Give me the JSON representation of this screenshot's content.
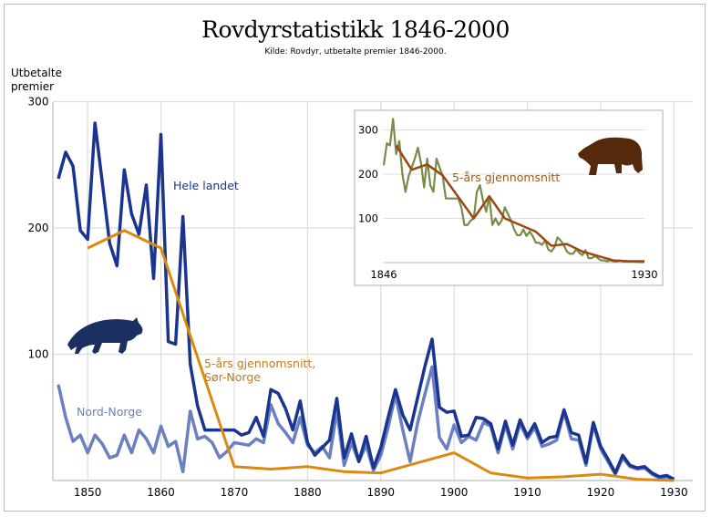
{
  "title": "Rovdyrstatistikk 1846-2000",
  "subtitle": "Kilde: Rovdyr, utbetalte premier 1846-2000.",
  "chart_data": [
    {
      "type": "line",
      "title": "Rovdyrstatistikk 1846-2000",
      "ylabel": "Utbetalte premier",
      "ylabel_lines": [
        "Utbetalte",
        "premier"
      ],
      "xlabel": "",
      "xlim": [
        1845,
        1932
      ],
      "ylim": [
        0,
        300
      ],
      "xticks": [
        1850,
        1860,
        1870,
        1880,
        1890,
        1900,
        1910,
        1920,
        1930
      ],
      "yticks": [
        100,
        200,
        300
      ],
      "grid": true,
      "icon": "wolf-icon",
      "series": [
        {
          "name": "Hele landet",
          "color": "#1a3590",
          "x_start": 1846,
          "values": [
            239,
            260,
            249,
            198,
            191,
            283,
            236,
            188,
            170,
            246,
            211,
            195,
            234,
            160,
            274,
            110,
            108,
            209,
            92,
            59,
            40,
            40,
            40,
            40,
            40,
            36,
            38,
            50,
            35,
            72,
            69,
            57,
            40,
            63,
            30,
            20,
            26,
            32,
            65,
            18,
            37,
            15,
            35,
            10,
            26,
            50,
            72,
            52,
            40,
            65,
            90,
            112,
            58,
            54,
            55,
            35,
            36,
            50,
            49,
            45,
            25,
            47,
            28,
            48,
            35,
            45,
            30,
            34,
            35,
            56,
            38,
            36,
            14,
            46,
            27,
            17,
            6,
            20,
            12,
            10,
            11,
            6,
            3,
            4,
            1
          ]
        },
        {
          "name": "Nord-Norge",
          "color": "#6a80c0",
          "x_start": 1846,
          "values": [
            76,
            50,
            31,
            36,
            22,
            36,
            29,
            18,
            20,
            36,
            22,
            40,
            33,
            22,
            43,
            27,
            31,
            7,
            55,
            33,
            35,
            30,
            18,
            23,
            30,
            29,
            28,
            33,
            30,
            60,
            45,
            38,
            30,
            50,
            28,
            22,
            27,
            18,
            55,
            12,
            30,
            15,
            28,
            8,
            20,
            42,
            68,
            40,
            15,
            45,
            68,
            90,
            34,
            25,
            44,
            30,
            35,
            32,
            46,
            43,
            22,
            44,
            25,
            45,
            33,
            42,
            27,
            29,
            32,
            54,
            33,
            32,
            12,
            44,
            25,
            15,
            5,
            18,
            11,
            9,
            10,
            5,
            2,
            3,
            1
          ]
        },
        {
          "name": "5-års gjennomsnitt, Sør-Norge",
          "label_lines": [
            "5-års gjennomsnitt,",
            "Sør-Norge"
          ],
          "color": "#d98a10",
          "x": [
            1850,
            1855,
            1860,
            1870,
            1875,
            1880,
            1885,
            1890,
            1900,
            1905,
            1910,
            1915,
            1920,
            1925,
            1930
          ],
          "values": [
            184,
            198,
            184,
            11,
            9,
            11,
            7,
            6,
            22,
            6,
            2,
            3,
            5,
            1,
            0
          ]
        }
      ]
    },
    {
      "type": "line",
      "title": "",
      "xlim": [
        1846,
        1930
      ],
      "ylim": [
        0,
        330
      ],
      "xticks": [
        1846,
        1930
      ],
      "yticks": [
        100,
        200,
        300
      ],
      "grid": true,
      "icon": "bear-icon",
      "series": [
        {
          "name": "Bjørn",
          "color": "#7a8a4a",
          "x_start": 1846,
          "values": [
            220,
            270,
            265,
            325,
            245,
            275,
            200,
            160,
            195,
            215,
            235,
            260,
            225,
            170,
            235,
            175,
            160,
            235,
            215,
            195,
            145,
            145,
            145,
            145,
            145,
            125,
            85,
            85,
            95,
            100,
            160,
            175,
            140,
            115,
            150,
            85,
            100,
            85,
            95,
            125,
            110,
            95,
            75,
            62,
            62,
            75,
            60,
            70,
            60,
            45,
            45,
            40,
            50,
            30,
            25,
            35,
            57,
            50,
            40,
            25,
            20,
            20,
            30,
            22,
            17,
            28,
            10,
            10,
            15,
            10,
            5,
            5,
            3,
            5,
            3,
            2,
            5,
            3,
            2,
            3,
            2,
            2,
            1,
            1,
            1
          ]
        },
        {
          "name": "5-års gjennomsnitt",
          "color": "#9a4a10",
          "x": [
            1850,
            1855,
            1860,
            1865,
            1875,
            1880,
            1885,
            1890,
            1895,
            1900,
            1905,
            1910,
            1915,
            1920,
            1925,
            1930
          ],
          "values": [
            265,
            210,
            222,
            197,
            100,
            150,
            100,
            85,
            70,
            38,
            42,
            25,
            15,
            5,
            3,
            3
          ]
        }
      ]
    }
  ]
}
